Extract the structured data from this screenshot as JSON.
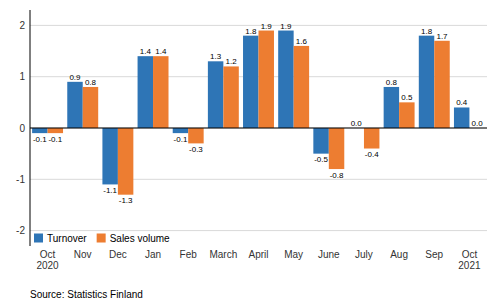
{
  "chart_data": {
    "type": "bar",
    "categories": [
      "Oct\n2020",
      "Nov",
      "Dec",
      "Jan",
      "Feb",
      "March",
      "April",
      "May",
      "June",
      "July",
      "Aug",
      "Sep",
      "Oct\n2021"
    ],
    "series": [
      {
        "name": "Turnover",
        "color": "#2E75B6",
        "values": [
          -0.1,
          0.9,
          -1.1,
          1.4,
          -0.1,
          1.3,
          1.8,
          1.9,
          -0.5,
          0.0,
          0.8,
          1.8,
          0.4
        ],
        "value_labels": [
          "-0.1",
          "0.9",
          "-1.1",
          "1.4",
          "-0.1",
          "1.3",
          "1.8",
          "1.9",
          "-0.5",
          "0.0",
          "0.8",
          "1.8",
          "0.4"
        ]
      },
      {
        "name": "Sales volume",
        "color": "#ED7D31",
        "values": [
          -0.1,
          0.8,
          -1.3,
          1.4,
          -0.3,
          1.2,
          1.9,
          1.6,
          -0.8,
          -0.4,
          0.5,
          1.7,
          0.0
        ],
        "value_labels": [
          "-0.1",
          "0.8",
          "-1.3",
          "1.4",
          "-0.3",
          "1.2",
          "1.9",
          "1.6",
          "-0.8",
          "-0.4",
          "0.5",
          "1.7",
          "0.0"
        ]
      }
    ],
    "ylim": [
      -2.3,
      2.3
    ],
    "yticks": [
      -2,
      -1,
      0,
      1,
      2
    ],
    "grid": true,
    "legend": "lower left",
    "data_labels": true,
    "annotations": [
      "Source: Statistics Finland"
    ]
  }
}
